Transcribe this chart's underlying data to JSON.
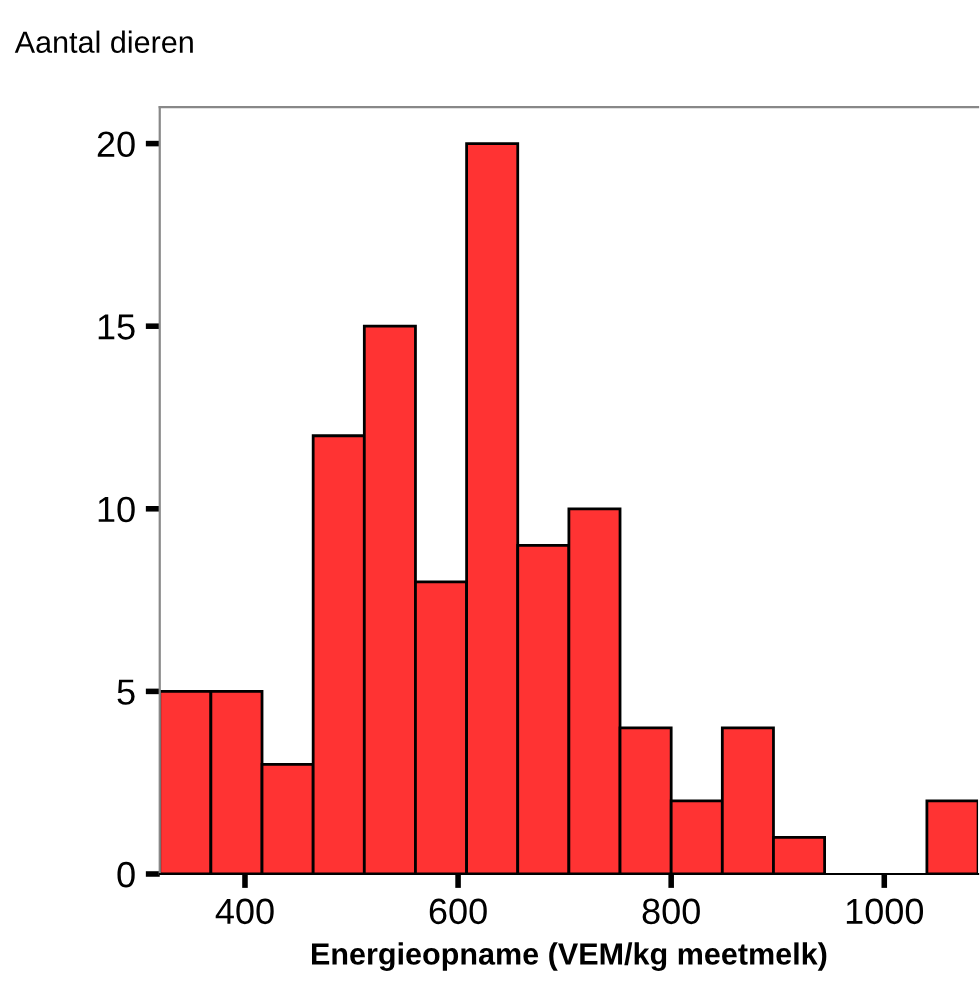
{
  "chart_data": {
    "type": "histogram",
    "ylabel": "Aantal dieren",
    "xlabel": "Energieopname (VEM/kg meetmelk)",
    "bins": [
      320,
      368,
      416,
      464,
      512,
      560,
      608,
      656,
      704,
      752,
      800,
      848,
      896,
      944,
      992,
      1040,
      1088
    ],
    "values": [
      5,
      5,
      3,
      12,
      15,
      8,
      20,
      9,
      10,
      4,
      2,
      4,
      1,
      0,
      0,
      2
    ],
    "color": "#ff3333",
    "xlim": [
      320,
      1088
    ],
    "xticks": [
      400,
      600,
      800,
      1000
    ],
    "ylim": [
      0,
      21
    ],
    "yticks": [
      0,
      5,
      10,
      15,
      20
    ],
    "grid": false
  }
}
